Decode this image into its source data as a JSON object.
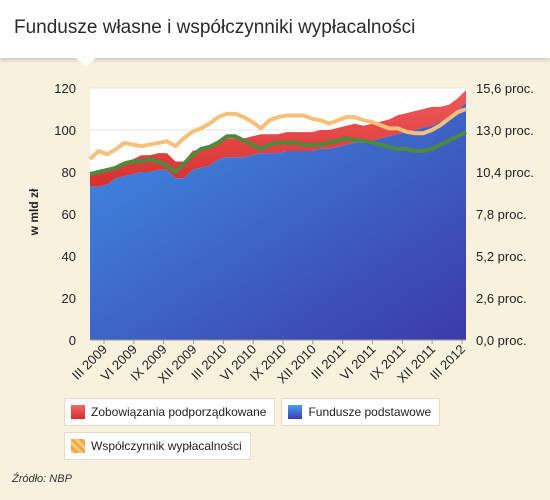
{
  "title": "Fundusze własne i współczynniki wypłacalności",
  "source": "Źródło: NBP",
  "colors": {
    "background": "#f7f1de",
    "red": "#e03a3a",
    "blue_top": "#3f8fe6",
    "blue_bottom": "#3c3aa8",
    "green": "#4e8a3c",
    "orange": "#f4bd6a"
  },
  "chart_data": {
    "type": "area",
    "ylabel": "w mld zł",
    "ylim": [
      0,
      120
    ],
    "y_ticks": [
      "0",
      "20",
      "40",
      "60",
      "80",
      "100",
      "120"
    ],
    "y2lim": [
      0,
      15.6
    ],
    "y2_ticks": [
      "0,0 proc.",
      "2,6 proc.",
      "5,2 proc.",
      "7,8 proc.",
      "10,4 proc.",
      "13,0 proc.",
      "15,6 proc."
    ],
    "x_labels": [
      "III 2009",
      "VI 2009",
      "IX 2009",
      "XII 2009",
      "III 2010",
      "VI 2010",
      "IX 2010",
      "XII 2010",
      "III 2011",
      "VI 2011",
      "IX 2011",
      "XII 2011",
      "III 2012"
    ],
    "legend_position": "bottom",
    "series": [
      {
        "name": "Fundusze podstawowe",
        "kind": "area",
        "values": [
          73,
          73,
          74,
          77,
          78,
          79,
          80,
          80,
          81,
          81,
          77,
          77,
          81,
          82,
          83,
          86,
          87,
          87,
          87,
          88,
          89,
          89,
          89,
          90,
          90,
          90,
          90,
          91,
          91,
          92,
          93,
          94,
          94,
          95,
          96,
          97,
          98,
          99,
          100,
          101,
          102,
          104,
          106,
          109,
          113
        ]
      },
      {
        "name": "Zobowiązania podporządkowane",
        "kind": "stacked-area",
        "values": [
          6,
          6,
          7,
          6,
          7,
          7,
          8,
          8,
          8,
          8,
          8,
          8,
          9,
          9,
          9,
          9,
          9,
          9,
          9,
          9,
          9,
          9,
          9,
          9,
          9,
          9,
          9,
          9,
          9,
          9,
          9,
          9,
          8,
          8,
          8,
          8,
          9,
          9,
          9,
          9,
          9,
          7,
          6,
          6,
          6
        ]
      },
      {
        "name": "Współczynnik wypłacalności",
        "kind": "line",
        "axis": "right",
        "values": [
          11.2,
          11.7,
          11.5,
          11.8,
          12.2,
          12.1,
          12.0,
          12.1,
          12.2,
          12.3,
          12.0,
          12.5,
          12.9,
          13.1,
          13.4,
          13.8,
          14.0,
          14.0,
          13.8,
          13.5,
          13.1,
          13.6,
          13.8,
          13.9,
          13.9,
          13.9,
          13.7,
          13.6,
          13.4,
          13.6,
          13.8,
          13.8,
          13.6,
          13.5,
          13.3,
          13.1,
          13.1,
          12.9,
          12.8,
          12.8,
          13.0,
          13.3,
          13.7,
          14.1,
          14.3
        ]
      },
      {
        "name": "",
        "kind": "line",
        "values": [
          79,
          80,
          81,
          82,
          84,
          85,
          85,
          86,
          85,
          83,
          80,
          84,
          88,
          91,
          92,
          94,
          97,
          97,
          95,
          93,
          91,
          93,
          94,
          94,
          94,
          93,
          93,
          93,
          94,
          95,
          96,
          95,
          95,
          94,
          93,
          92,
          91,
          91,
          90,
          90,
          91,
          93,
          95,
          97,
          99
        ]
      }
    ]
  }
}
